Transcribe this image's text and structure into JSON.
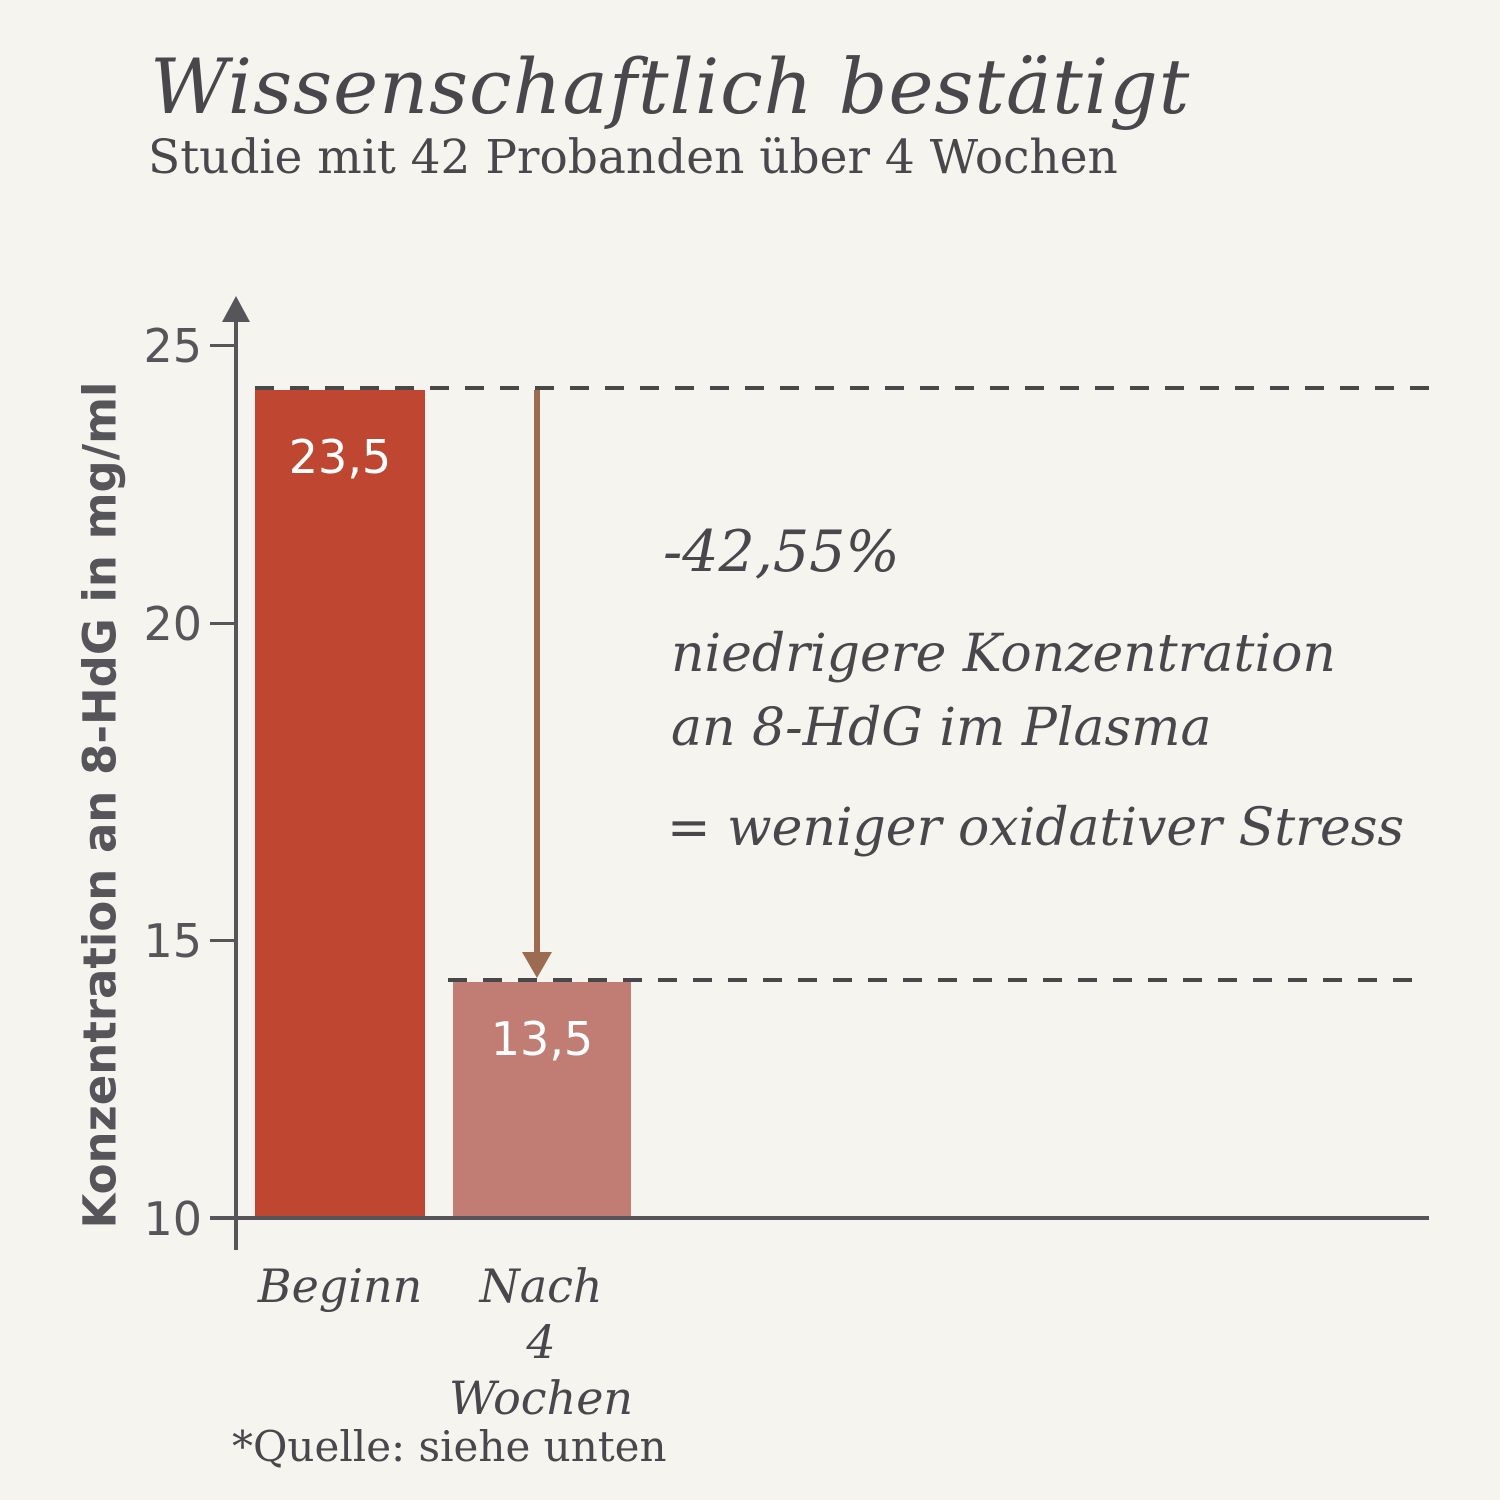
{
  "header": {
    "title": "Wissenschaftlich bestätigt",
    "subtitle": "Studie mit 42 Probanden über 4 Wochen"
  },
  "chart": {
    "y_axis": {
      "label": "Konzentration an 8-HdG in mg/ml",
      "ticks": [
        "25",
        "20",
        "15",
        "10"
      ]
    },
    "bars": [
      {
        "category_line1": "Beginn",
        "category_line2": "",
        "value_label": "23,5"
      },
      {
        "category_line1": "Nach",
        "category_line2": "4 Wochen",
        "value_label": "13,5"
      }
    ]
  },
  "annotation": {
    "percent": "-42,55%",
    "line1": "niedrigere Konzentration",
    "line2": "an 8-HdG im Plasma",
    "equals": "= weniger oxidativer Stress"
  },
  "footer": {
    "source": "*Quelle: siehe unten"
  },
  "colors": {
    "background": "#f6f4ef",
    "bar_start": "#bf4732",
    "bar_after": "#c17d73",
    "arrow": "#9c6b50",
    "axis": "#55555a",
    "dashed_line": "#48484a",
    "text": "#47474c",
    "bar_value_text": "#ffffff"
  },
  "chart_data": {
    "type": "bar",
    "categories": [
      "Beginn",
      "Nach 4 Wochen"
    ],
    "values": [
      23.5,
      13.5
    ],
    "value_labels": [
      "23,5",
      "13,5"
    ],
    "title": "Wissenschaftlich bestätigt",
    "subtitle": "Studie mit 42 Probanden über 4 Wochen",
    "xlabel": "",
    "ylabel": "Konzentration an 8-HdG in mg/ml",
    "ylim": [
      10,
      26
    ],
    "yticks": [
      10,
      15,
      20,
      25
    ],
    "bar_colors": [
      "#bf4732",
      "#c17d73"
    ],
    "grid": false,
    "legend": false,
    "annotations": [
      "-42,55%",
      "niedrigere Konzentration an 8-HdG im Plasma",
      "= weniger oxidativer Stress"
    ],
    "reference_lines": [
      23.5,
      13.5
    ],
    "source_note": "*Quelle: siehe unten"
  }
}
